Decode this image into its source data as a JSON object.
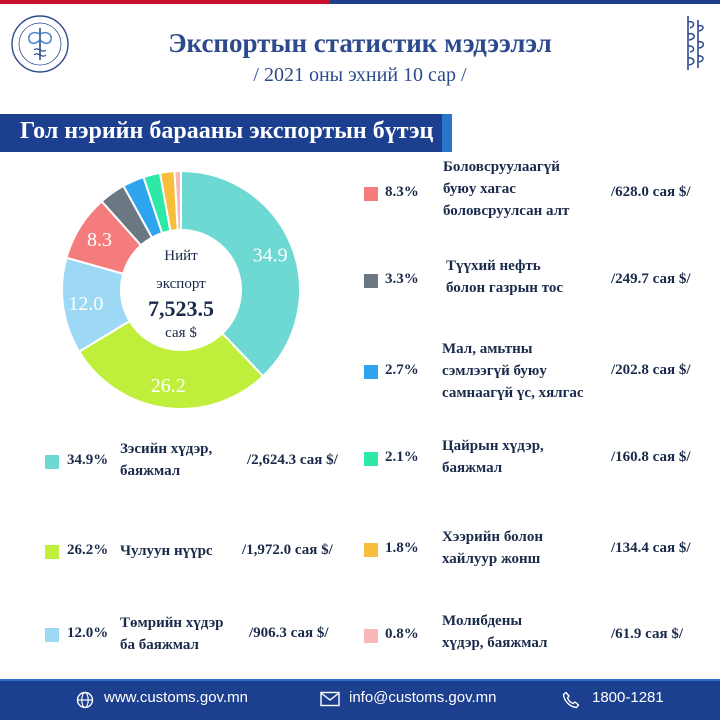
{
  "header": {
    "title": "Экспортын статистик мэдээлэл",
    "subtitle": "/ 2021 оны эхний 10 сар /",
    "section_title": "Гол нэрийн барааны экспортын бүтэц"
  },
  "center": {
    "line1": "Нийт",
    "line2": "экспорт",
    "total": "7,523.5",
    "unit": "сая $"
  },
  "chart_data": {
    "type": "pie",
    "total": 7523.5,
    "slices": [
      {
        "label": "Зэсийн хүдэр, баяжмал",
        "value": 34.9,
        "amount": 2624.3,
        "color": "#6ed8d3"
      },
      {
        "label": "Чулуун нүүрс",
        "value": 26.2,
        "amount": 1972.0,
        "color": "#c0ef3b"
      },
      {
        "label": "Төмрийн хүдэр ба баяжмал",
        "value": 12.0,
        "amount": 906.3,
        "color": "#9dd9f5"
      },
      {
        "label": "Боловсруулаагүй буюу хагас боловсруулсан алт",
        "value": 8.3,
        "amount": 628.0,
        "color": "#f47c7c"
      },
      {
        "label": "Түүхий нефть болон газрын тос",
        "value": 3.3,
        "amount": 249.7,
        "color": "#6b7883"
      },
      {
        "label": "Мал, амьтны сэмлээгүй буюу самнаагүй үс, хялгас",
        "value": 2.7,
        "amount": 202.8,
        "color": "#2ea3ee"
      },
      {
        "label": "Цайрын хүдэр, баяжмал",
        "value": 2.1,
        "amount": 160.8,
        "color": "#2ee8a5"
      },
      {
        "label": "Хээрийн болон хайлуур жонш",
        "value": 1.8,
        "amount": 134.4,
        "color": "#f8bd3b"
      },
      {
        "label": "Молибдены хүдэр, баяжмал",
        "value": 0.8,
        "amount": 61.9,
        "color": "#f9b7b7"
      }
    ],
    "slice_labels": [
      "34.9",
      "26.2",
      "12.0",
      "8.3"
    ]
  },
  "legend": [
    {
      "pct": "34.9%",
      "lines": [
        "Зэсийн хүдэр,",
        "баяжмал"
      ],
      "value": "/2,624.3 сая $/",
      "color": "#6ed8d3"
    },
    {
      "pct": "26.2%",
      "lines": [
        "Чулуун нүүрс"
      ],
      "value": "/1,972.0 сая $/",
      "color": "#c0ef3b"
    },
    {
      "pct": "12.0%",
      "lines": [
        "Төмрийн хүдэр",
        "ба баяжмал"
      ],
      "value": "/906.3 сая $/",
      "color": "#9dd9f5"
    },
    {
      "pct": "8.3%",
      "lines": [
        "Боловсруулаагүй",
        "буюу хагас",
        "боловсруулсан алт"
      ],
      "value": "/628.0 сая $/",
      "color": "#f47c7c"
    },
    {
      "pct": "3.3%",
      "lines": [
        "Түүхий нефть",
        "болон газрын тос"
      ],
      "value": "/249.7 сая $/",
      "color": "#6b7883"
    },
    {
      "pct": "2.7%",
      "lines": [
        "Мал, амьтны",
        "сэмлээгүй буюу",
        "самнаагүй үс, хялгас"
      ],
      "value": "/202.8  сая $/",
      "color": "#2ea3ee"
    },
    {
      "pct": "2.1%",
      "lines": [
        "Цайрын хүдэр,",
        "баяжмал"
      ],
      "value": "/160.8 сая $/",
      "color": "#2ee8a5"
    },
    {
      "pct": "1.8%",
      "lines": [
        "Хээрийн болон",
        "хайлуур жонш"
      ],
      "value": "/134.4  сая $/",
      "color": "#f8bd3b"
    },
    {
      "pct": "0.8%",
      "lines": [
        "Молибдены",
        "хүдэр, баяжмал"
      ],
      "value": "/61.9 сая $/",
      "color": "#f9b7b7"
    }
  ],
  "footer": {
    "website": "www.customs.gov.mn",
    "email": "info@customs.gov.mn",
    "phone": "1800-1281"
  },
  "icons": {
    "logo": "customs-emblem-icon",
    "script": "mongolian-script-icon",
    "web": "globe-icon",
    "mail": "envelope-icon",
    "phone": "phone-icon"
  }
}
